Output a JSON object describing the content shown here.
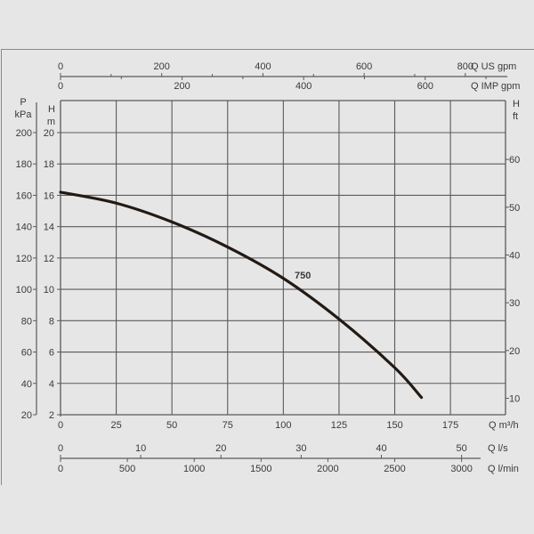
{
  "chart_data": {
    "type": "line",
    "title": "",
    "series": [
      {
        "name": "750",
        "x": [
          0,
          25,
          50,
          75,
          100,
          125,
          150,
          162
        ],
        "values": [
          16.2,
          15.5,
          14.3,
          12.7,
          10.7,
          8.1,
          5.0,
          3.1
        ]
      }
    ],
    "xlabel": "Q m³/h",
    "ylabel": "H m",
    "xlim": [
      0,
      175
    ],
    "ylim": [
      2,
      22
    ],
    "grid": true,
    "x_ticks": [
      "0",
      "25",
      "50",
      "75",
      "100",
      "125",
      "150",
      "175"
    ],
    "y_ticks_m": [
      "2",
      "4",
      "6",
      "8",
      "10",
      "12",
      "14",
      "16",
      "18",
      "20"
    ],
    "y_ticks_kpa": [
      "20",
      "40",
      "60",
      "80",
      "100",
      "120",
      "140",
      "160",
      "180",
      "200"
    ],
    "y_ticks_ft": [
      "10",
      "20",
      "30",
      "40",
      "50",
      "60"
    ],
    "top_axis_us_gpm": [
      "0",
      "200",
      "400",
      "600",
      "800"
    ],
    "top_axis_imp_gpm": [
      "0",
      "200",
      "400",
      "600"
    ],
    "bottom_axis_ls": [
      "0",
      "10",
      "20",
      "30",
      "40",
      "50"
    ],
    "bottom_axis_lmin": [
      "0",
      "500",
      "1000",
      "1500",
      "2000",
      "2500",
      "3000"
    ]
  },
  "labels": {
    "p_axis_title": "P",
    "p_axis_unit": "kPa",
    "h_axis_title": "H",
    "h_axis_unit": "m",
    "hft_axis_title": "H",
    "hft_axis_unit": "ft",
    "us_gpm": "Q US gpm",
    "imp_gpm": "Q IMP gpm",
    "m3h": "Q m³/h",
    "ls": "Q l/s",
    "lmin": "Q l/min",
    "curve_label": "750"
  },
  "colors": {
    "background": "#e6e6e6",
    "grid": "#5a5a5a",
    "curve": "#231a14",
    "text": "#3a3a3a"
  }
}
